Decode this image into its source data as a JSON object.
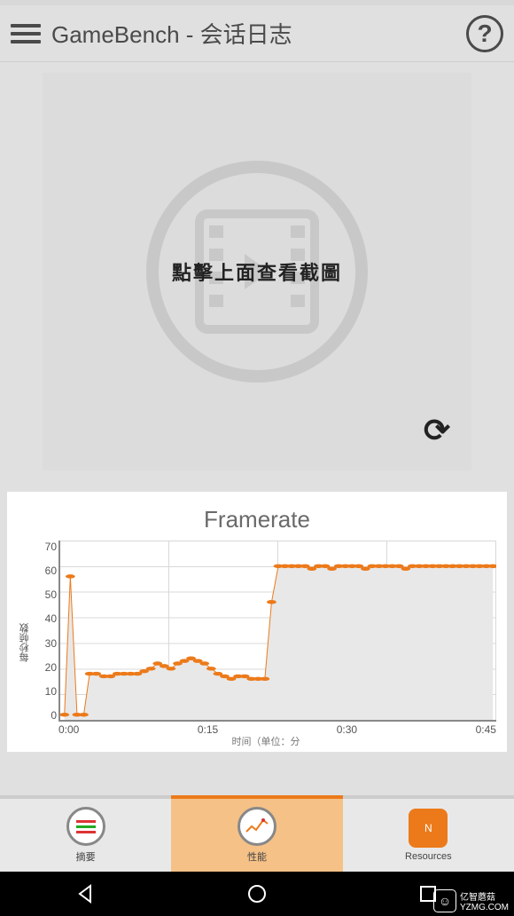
{
  "header": {
    "title": "GameBench - 会话日志",
    "help_glyph": "?"
  },
  "screenshot_panel": {
    "caption": "點擊上面查看截圖"
  },
  "chart": {
    "type": "line",
    "title": "Framerate",
    "y_label": "每秒帧数",
    "x_label": "时间（单位：分",
    "ylim": [
      0,
      70
    ],
    "y_ticks": [
      0,
      10,
      20,
      30,
      40,
      50,
      60,
      70
    ],
    "x_ticks": [
      "0:00",
      "0:15",
      "0:30",
      "0:45"
    ],
    "xlim_minutes": [
      0,
      52
    ],
    "line_color": "#ec7a1a",
    "fill_color": "#e8e8e8",
    "marker_color": "#ec7a1a",
    "marker_size": 4,
    "grid_color": "#d8d8d8",
    "axis_color": "#888888",
    "background": "#ffffff",
    "title_fontsize": 26,
    "tick_fontsize": 12,
    "points": [
      {
        "x": 0.5,
        "y": 2
      },
      {
        "x": 1.2,
        "y": 56
      },
      {
        "x": 2.0,
        "y": 2
      },
      {
        "x": 2.8,
        "y": 2
      },
      {
        "x": 3.5,
        "y": 18
      },
      {
        "x": 4.3,
        "y": 18
      },
      {
        "x": 5.2,
        "y": 17
      },
      {
        "x": 6.0,
        "y": 17
      },
      {
        "x": 6.8,
        "y": 18
      },
      {
        "x": 7.6,
        "y": 18
      },
      {
        "x": 8.4,
        "y": 18
      },
      {
        "x": 9.2,
        "y": 18
      },
      {
        "x": 10.0,
        "y": 19
      },
      {
        "x": 10.8,
        "y": 20
      },
      {
        "x": 11.6,
        "y": 22
      },
      {
        "x": 12.4,
        "y": 21
      },
      {
        "x": 13.2,
        "y": 20
      },
      {
        "x": 14.0,
        "y": 22
      },
      {
        "x": 14.8,
        "y": 23
      },
      {
        "x": 15.6,
        "y": 24
      },
      {
        "x": 16.4,
        "y": 23
      },
      {
        "x": 17.2,
        "y": 22
      },
      {
        "x": 18.0,
        "y": 20
      },
      {
        "x": 18.8,
        "y": 18
      },
      {
        "x": 19.6,
        "y": 17
      },
      {
        "x": 20.4,
        "y": 16
      },
      {
        "x": 21.2,
        "y": 17
      },
      {
        "x": 22.0,
        "y": 17
      },
      {
        "x": 22.8,
        "y": 16
      },
      {
        "x": 23.6,
        "y": 16
      },
      {
        "x": 24.4,
        "y": 16
      },
      {
        "x": 25.2,
        "y": 46
      },
      {
        "x": 26.0,
        "y": 60
      },
      {
        "x": 26.8,
        "y": 60
      },
      {
        "x": 27.6,
        "y": 60
      },
      {
        "x": 28.4,
        "y": 60
      },
      {
        "x": 29.2,
        "y": 60
      },
      {
        "x": 30.0,
        "y": 59
      },
      {
        "x": 30.8,
        "y": 60
      },
      {
        "x": 31.6,
        "y": 60
      },
      {
        "x": 32.4,
        "y": 59
      },
      {
        "x": 33.2,
        "y": 60
      },
      {
        "x": 34.0,
        "y": 60
      },
      {
        "x": 34.8,
        "y": 60
      },
      {
        "x": 35.6,
        "y": 60
      },
      {
        "x": 36.4,
        "y": 59
      },
      {
        "x": 37.2,
        "y": 60
      },
      {
        "x": 38.0,
        "y": 60
      },
      {
        "x": 38.8,
        "y": 60
      },
      {
        "x": 39.6,
        "y": 60
      },
      {
        "x": 40.4,
        "y": 60
      },
      {
        "x": 41.2,
        "y": 59
      },
      {
        "x": 42.0,
        "y": 60
      },
      {
        "x": 42.8,
        "y": 60
      },
      {
        "x": 43.6,
        "y": 60
      },
      {
        "x": 44.4,
        "y": 60
      },
      {
        "x": 45.2,
        "y": 60
      },
      {
        "x": 46.0,
        "y": 60
      },
      {
        "x": 46.8,
        "y": 60
      },
      {
        "x": 47.6,
        "y": 60
      },
      {
        "x": 48.4,
        "y": 60
      },
      {
        "x": 49.2,
        "y": 60
      },
      {
        "x": 50.0,
        "y": 60
      },
      {
        "x": 50.8,
        "y": 60
      },
      {
        "x": 51.6,
        "y": 60
      }
    ]
  },
  "tabs": {
    "active_index": 1,
    "items": [
      {
        "label": "摘要",
        "icon": "summary"
      },
      {
        "label": "性能",
        "icon": "performance"
      },
      {
        "label": "Resources",
        "icon": "resources"
      }
    ]
  },
  "watermark": {
    "line1": "亿智蘑菇",
    "line2": "YZMG.COM",
    "logo_glyph": "☺"
  }
}
